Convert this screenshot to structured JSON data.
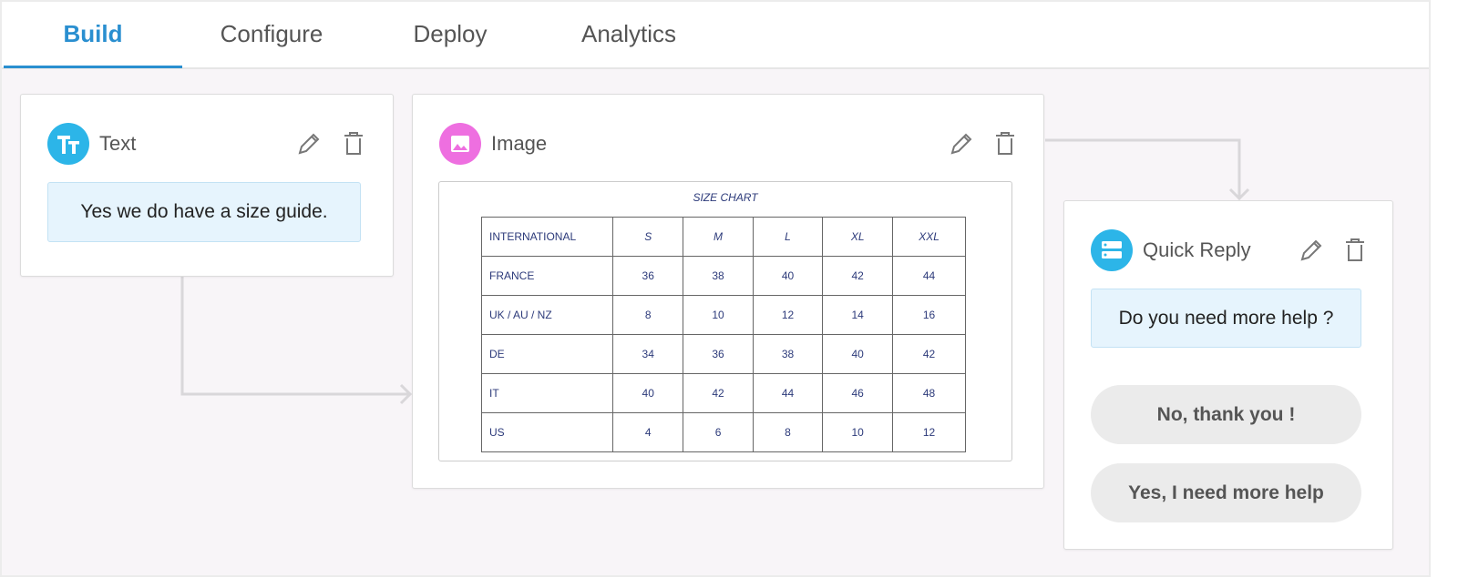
{
  "tabs": [
    "Build",
    "Configure",
    "Deploy",
    "Analytics"
  ],
  "active_tab": 0,
  "nodes": [
    {
      "label": "Text",
      "message": "Yes we do have a size guide."
    },
    {
      "label": "Image",
      "image": {
        "title": "SIZE CHART",
        "columns": [
          "INTERNATIONAL",
          "S",
          "M",
          "L",
          "XL",
          "XXL"
        ],
        "rows": [
          [
            "FRANCE",
            "36",
            "38",
            "40",
            "42",
            "44"
          ],
          [
            "UK / AU / NZ",
            "8",
            "10",
            "12",
            "14",
            "16"
          ],
          [
            "DE",
            "34",
            "36",
            "38",
            "40",
            "42"
          ],
          [
            "IT",
            "40",
            "42",
            "44",
            "46",
            "48"
          ],
          [
            "US",
            "4",
            "6",
            "8",
            "10",
            "12"
          ]
        ]
      }
    },
    {
      "label": "Quick Reply",
      "message": "Do you need more help ?",
      "replies": [
        "No, thank you !",
        "Yes, I need more help"
      ]
    }
  ]
}
